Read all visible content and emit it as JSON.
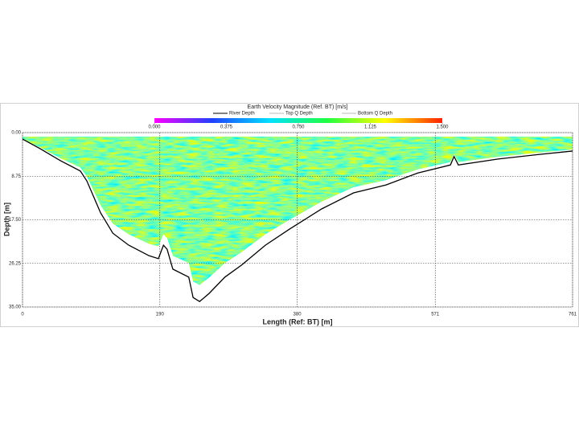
{
  "chart_data": {
    "type": "line",
    "title": "Earth Velocity Magnitude (Ref. BT) [m/s]",
    "xlabel": "Length (Ref: BT) [m]",
    "ylabel": "Depth [m]",
    "legend": [
      {
        "name": "River Depth",
        "color": "#000000"
      },
      {
        "name": "Top Q Depth",
        "color": "#ffffff"
      },
      {
        "name": "Bottom Q Depth",
        "color": "#ffffff"
      }
    ],
    "colorbar": {
      "colors": [
        "#ff00ff",
        "#2040ff",
        "#00e0ff",
        "#20ff40",
        "#ffff00",
        "#ff2000"
      ],
      "ticks": [
        {
          "value": 0,
          "label": "0.000"
        },
        {
          "value": 0.375,
          "label": "0.375"
        },
        {
          "value": 0.75,
          "label": "0.750"
        },
        {
          "value": 1.125,
          "label": "1.125"
        },
        {
          "value": 1.5,
          "label": "1.500"
        }
      ],
      "lim": [
        0,
        1.5
      ]
    },
    "series": [
      {
        "color": "#000000",
        "x": [
          0,
          24,
          52,
          80,
          89,
          108,
          125,
          147,
          175,
          188,
          195,
          200,
          208,
          230,
          236,
          245,
          258,
          280,
          303,
          336,
          369,
          414,
          458,
          503,
          547,
          592,
          597,
          603,
          658,
          714,
          761
        ],
        "values": [
          1.3,
          3.2,
          5.6,
          7.7,
          9.7,
          16.1,
          20.2,
          22.6,
          24.7,
          25.3,
          22.6,
          23.4,
          27.4,
          29.0,
          33.1,
          33.9,
          32.3,
          29.0,
          26.6,
          22.6,
          19.4,
          15.3,
          12.1,
          10.5,
          8.1,
          6.5,
          4.8,
          6.5,
          5.3,
          4.4,
          3.7
        ]
      }
    ],
    "xlim": [
      0,
      761
    ],
    "xticks": [
      0,
      190,
      380,
      571,
      761
    ],
    "ylim": [
      0,
      35
    ],
    "yinverted": true,
    "yticks": [
      {
        "value": 0,
        "label": "0.00"
      },
      {
        "value": 8.75,
        "label": "8.75"
      },
      {
        "value": 17.5,
        "label": "17.50"
      },
      {
        "value": 26.25,
        "label": "26.25"
      },
      {
        "value": 35,
        "label": "35.00"
      }
    ],
    "grid": true
  }
}
